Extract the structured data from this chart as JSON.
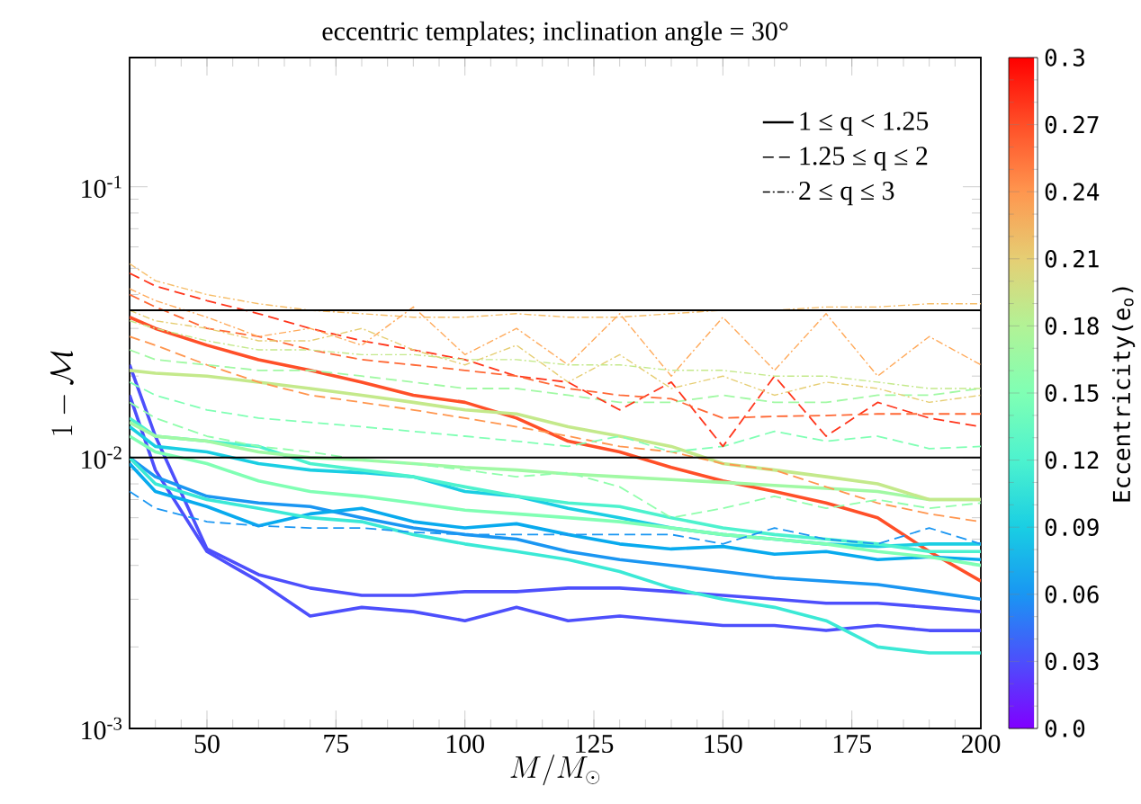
{
  "chart_data": {
    "type": "line",
    "title": "eccentric templates; inclination angle = 30°",
    "xlabel": "M/M_\\odot",
    "ylabel": "1-\\mathcal{M}",
    "clabel": "Eccentricity(e$_{o}$)",
    "log": "y",
    "xlim": [
      35,
      200
    ],
    "ylim": [
      0.001,
      0.3
    ],
    "xticks": [
      50,
      75,
      100,
      125,
      150,
      175,
      200
    ],
    "yticks": [
      {
        "value": 0.001,
        "label": "10$^{-3}$"
      },
      {
        "value": 0.01,
        "label": "10$^{-2}$"
      },
      {
        "value": 0.1,
        "label": "10$^{-1}$"
      }
    ],
    "clim": [
      0,
      0.3
    ],
    "cticks": [
      {
        "value": 0,
        "label": "0.0"
      },
      0.03,
      0.06,
      0.09,
      0.12,
      0.15,
      0.18,
      0.21,
      0.24,
      0.27,
      0.3
    ],
    "annotations": [
      "1 ≤ q < 1.25",
      "1.25 ≤ q ≤ 2",
      "2 ≤ q ≤ 3"
    ],
    "grid": false,
    "x": [
      35,
      40,
      50,
      60,
      70,
      80,
      90,
      100,
      110,
      120,
      130,
      140,
      150,
      160,
      170,
      180,
      190,
      200
    ],
    "ref_lines": [
      {
        "axis": "y",
        "value": 0.035,
        "color": "#000000"
      },
      {
        "axis": "y",
        "value": 0.01,
        "color": "#000000"
      }
    ],
    "series": [
      {
        "color": "#ff4f28",
        "line_style": "solid",
        "values": [
          0.033,
          0.03,
          0.026,
          0.023,
          0.021,
          0.019,
          0.017,
          0.016,
          0.014,
          0.0115,
          0.0105,
          0.0092,
          0.0082,
          0.0075,
          0.0068,
          0.006,
          0.0045,
          0.0035
        ]
      },
      {
        "color": "#4d4ffc",
        "line_style": "solid",
        "values": [
          0.022,
          0.012,
          0.0046,
          0.0037,
          0.0033,
          0.0031,
          0.0031,
          0.0032,
          0.0032,
          0.0033,
          0.0033,
          0.0032,
          0.0031,
          0.003,
          0.0029,
          0.0029,
          0.0028,
          0.0027
        ]
      },
      {
        "color": "#4d4ffc",
        "line_style": "solid",
        "values": [
          0.017,
          0.009,
          0.0045,
          0.0035,
          0.0026,
          0.0028,
          0.0027,
          0.0025,
          0.0028,
          0.0025,
          0.0026,
          0.0025,
          0.0024,
          0.0024,
          0.0023,
          0.0024,
          0.0023,
          0.0023
        ]
      },
      {
        "color": "#1a96f2",
        "line_style": "solid",
        "values": [
          0.01,
          0.0085,
          0.0072,
          0.0068,
          0.0066,
          0.006,
          0.0055,
          0.0052,
          0.005,
          0.0045,
          0.0042,
          0.004,
          0.0038,
          0.0036,
          0.0035,
          0.0034,
          0.0032,
          0.003
        ]
      },
      {
        "color": "#08aaee",
        "line_style": "solid",
        "values": [
          0.0095,
          0.0075,
          0.0066,
          0.0056,
          0.0062,
          0.0065,
          0.0058,
          0.0055,
          0.0057,
          0.0052,
          0.0048,
          0.0046,
          0.0047,
          0.0044,
          0.0045,
          0.0042,
          0.0043,
          0.0042
        ]
      },
      {
        "color": "#1acee3",
        "line_style": "solid",
        "values": [
          0.013,
          0.011,
          0.0105,
          0.0095,
          0.009,
          0.0088,
          0.0085,
          0.0075,
          0.0072,
          0.0065,
          0.006,
          0.0055,
          0.0052,
          0.005,
          0.0048,
          0.0047,
          0.0048,
          0.0048
        ]
      },
      {
        "color": "#3be9d6",
        "line_style": "solid",
        "values": [
          0.01,
          0.008,
          0.007,
          0.0065,
          0.006,
          0.0058,
          0.0052,
          0.0048,
          0.0045,
          0.0042,
          0.0038,
          0.0033,
          0.003,
          0.0028,
          0.0025,
          0.002,
          0.0019,
          0.0019
        ]
      },
      {
        "color": "#4df2ce",
        "line_style": "solid",
        "values": [
          0.014,
          0.012,
          0.0115,
          0.011,
          0.0095,
          0.009,
          0.0085,
          0.0078,
          0.0072,
          0.0068,
          0.0066,
          0.006,
          0.0055,
          0.0052,
          0.005,
          0.0048,
          0.0045,
          0.0045
        ]
      },
      {
        "color": "#80ffb4",
        "line_style": "solid",
        "values": [
          0.012,
          0.0105,
          0.0095,
          0.0082,
          0.0075,
          0.0072,
          0.0068,
          0.0064,
          0.0062,
          0.006,
          0.0058,
          0.0055,
          0.0052,
          0.005,
          0.0048,
          0.0045,
          0.0043,
          0.004
        ]
      },
      {
        "color": "#a1f9a4",
        "line_style": "solid",
        "values": [
          0.0135,
          0.012,
          0.0115,
          0.0105,
          0.01,
          0.0098,
          0.0095,
          0.0092,
          0.009,
          0.0087,
          0.0085,
          0.0083,
          0.0081,
          0.0079,
          0.0077,
          0.0075,
          0.007,
          0.007
        ]
      },
      {
        "color": "#c4e98b",
        "line_style": "solid",
        "values": [
          0.021,
          0.0205,
          0.02,
          0.019,
          0.018,
          0.017,
          0.016,
          0.015,
          0.0145,
          0.013,
          0.012,
          0.011,
          0.0095,
          0.009,
          0.0085,
          0.008,
          0.007,
          0.007
        ]
      },
      {
        "color": "#ff964f",
        "line_style": "dashed",
        "values": [
          0.028,
          0.026,
          0.022,
          0.019,
          0.017,
          0.016,
          0.015,
          0.014,
          0.013,
          0.012,
          0.011,
          0.0105,
          0.0095,
          0.009,
          0.0078,
          0.0068,
          0.0062,
          0.0058
        ]
      },
      {
        "color": "#1a96f2",
        "line_style": "dashed",
        "values": [
          0.0075,
          0.0065,
          0.0058,
          0.0056,
          0.0055,
          0.0055,
          0.0053,
          0.0052,
          0.0052,
          0.0052,
          0.0052,
          0.0052,
          0.0048,
          0.0055,
          0.005,
          0.0048,
          0.0055,
          0.0048
        ]
      },
      {
        "color": "#80ffb4",
        "line_style": "dashed",
        "values": [
          0.019,
          0.017,
          0.015,
          0.014,
          0.0135,
          0.013,
          0.0125,
          0.012,
          0.0115,
          0.011,
          0.012,
          0.0105,
          0.011,
          0.0125,
          0.0115,
          0.012,
          0.0108,
          0.011
        ]
      },
      {
        "color": "#90feac",
        "line_style": "dashed",
        "values": [
          0.016,
          0.014,
          0.012,
          0.011,
          0.0105,
          0.0098,
          0.0095,
          0.009,
          0.0085,
          0.0088,
          0.0078,
          0.006,
          0.0065,
          0.0072,
          0.0065,
          0.007,
          0.0065,
          0.0068
        ]
      },
      {
        "color": "#a1f9a4",
        "line_style": "dashed",
        "values": [
          0.025,
          0.023,
          0.022,
          0.021,
          0.021,
          0.02,
          0.019,
          0.018,
          0.018,
          0.017,
          0.016,
          0.016,
          0.017,
          0.016,
          0.016,
          0.017,
          0.017,
          0.018
        ]
      },
      {
        "color": "#ff351b",
        "line_style": "dashed",
        "values": [
          0.048,
          0.043,
          0.038,
          0.034,
          0.03,
          0.027,
          0.025,
          0.023,
          0.02,
          0.019,
          0.015,
          0.019,
          0.011,
          0.02,
          0.012,
          0.016,
          0.014,
          0.013
        ]
      },
      {
        "color": "#ff6835",
        "line_style": "dashed",
        "values": [
          0.04,
          0.036,
          0.03,
          0.028,
          0.025,
          0.023,
          0.022,
          0.021,
          0.02,
          0.018,
          0.017,
          0.0165,
          0.014,
          0.0142,
          0.0143,
          0.0145,
          0.0145,
          0.0145
        ]
      },
      {
        "color": "#f6bd68",
        "line_style": "dashdot",
        "values": [
          0.052,
          0.045,
          0.04,
          0.037,
          0.035,
          0.034,
          0.033,
          0.033,
          0.034,
          0.033,
          0.033,
          0.034,
          0.035,
          0.035,
          0.036,
          0.036,
          0.037,
          0.037
        ]
      },
      {
        "color": "#ffaa5b",
        "line_style": "dashdot",
        "values": [
          0.042,
          0.038,
          0.033,
          0.028,
          0.03,
          0.026,
          0.036,
          0.024,
          0.03,
          0.022,
          0.034,
          0.02,
          0.033,
          0.021,
          0.034,
          0.02,
          0.028,
          0.022
        ]
      },
      {
        "color": "#e6ce74",
        "line_style": "dashdot",
        "values": [
          0.035,
          0.032,
          0.03,
          0.027,
          0.027,
          0.03,
          0.025,
          0.022,
          0.026,
          0.019,
          0.024,
          0.018,
          0.02,
          0.017,
          0.019,
          0.018,
          0.016,
          0.017
        ]
      },
      {
        "color": "#c4e98b",
        "line_style": "dashdot",
        "values": [
          0.032,
          0.03,
          0.027,
          0.025,
          0.025,
          0.024,
          0.024,
          0.023,
          0.023,
          0.022,
          0.022,
          0.021,
          0.021,
          0.02,
          0.02,
          0.019,
          0.018,
          0.018
        ]
      }
    ]
  }
}
